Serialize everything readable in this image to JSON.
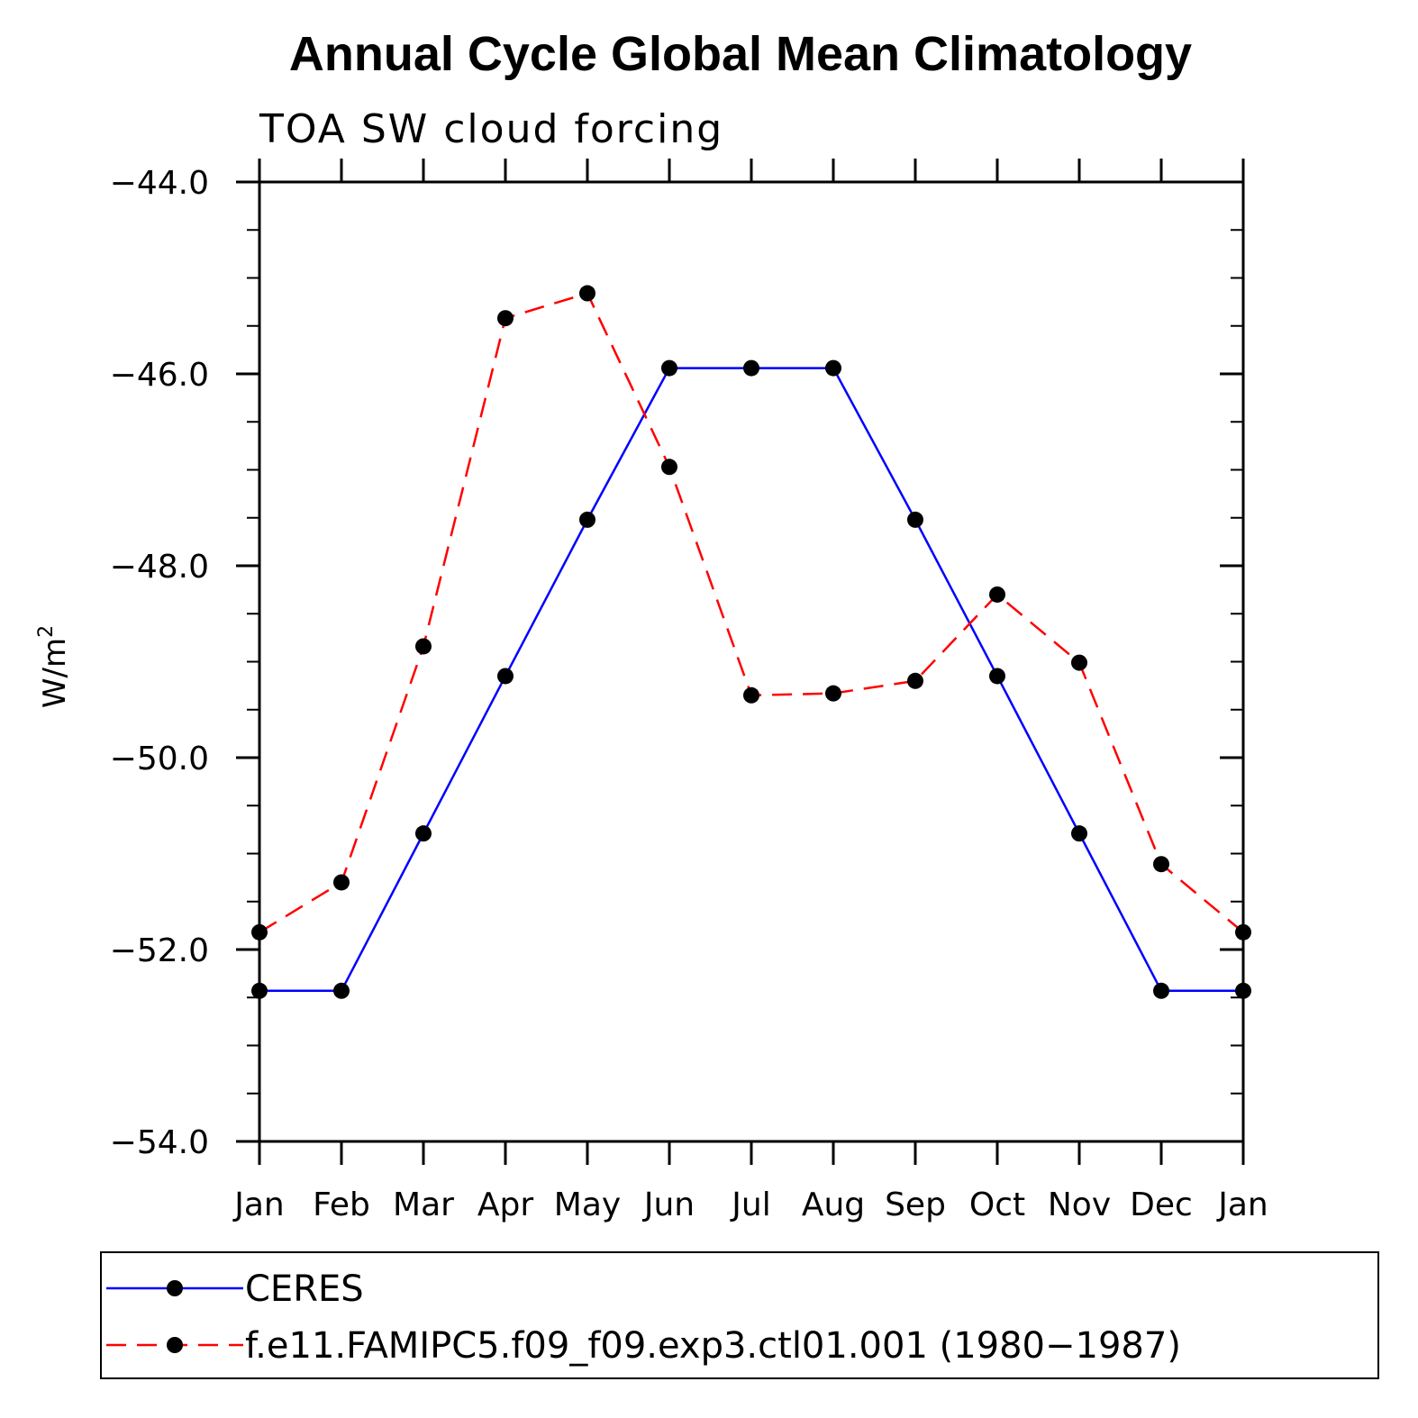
{
  "chart_data": {
    "type": "line",
    "title": "Annual Cycle Global Mean Climatology",
    "subtitle": "TOA SW cloud forcing",
    "ylabel": "W/m",
    "ylabel_superscript": "2",
    "ylim": [
      -54.0,
      -44.0
    ],
    "yticks": [
      -44.0,
      -46.0,
      -48.0,
      -50.0,
      -52.0,
      -54.0
    ],
    "ytick_labels": [
      "−44.0",
      "−46.0",
      "−48.0",
      "−50.0",
      "−52.0",
      "−54.0"
    ],
    "categories": [
      "Jan",
      "Feb",
      "Mar",
      "Apr",
      "May",
      "Jun",
      "Jul",
      "Aug",
      "Sep",
      "Oct",
      "Nov",
      "Dec",
      "Jan"
    ],
    "series": [
      {
        "name": "CERES",
        "color": "#0000ff",
        "dash": "solid",
        "values": [
          -52.43,
          -52.43,
          -50.79,
          -49.15,
          -47.52,
          -45.94,
          -45.94,
          -45.94,
          -47.52,
          -49.15,
          -50.79,
          -52.43,
          -52.43
        ]
      },
      {
        "name": "f.e11.FAMIPC5.f09_f09.exp3.ctl01.001 (1980−1987)",
        "color": "#ff0000",
        "dash": "dashed",
        "values": [
          -51.82,
          -51.3,
          -48.84,
          -45.42,
          -45.16,
          -46.97,
          -49.35,
          -49.33,
          -49.2,
          -48.3,
          -49.01,
          -51.11,
          -51.82
        ]
      }
    ],
    "legend_position": "bottom"
  }
}
